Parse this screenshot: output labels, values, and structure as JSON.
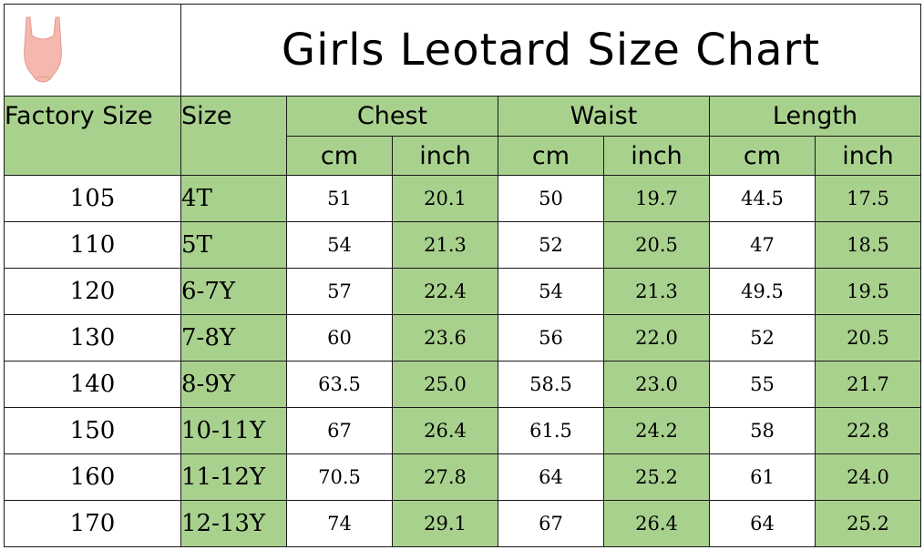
{
  "title": "Girls Leotard Size Chart",
  "logo": "pink-leotard-icon",
  "colors": {
    "header_green": "#a9d18e",
    "border": "#1a1a1a",
    "leotard_pink": "#f4b8ae"
  },
  "headers": {
    "factory_size": "Factory Size",
    "size": "Size",
    "chest": "Chest",
    "waist": "Waist",
    "length": "Length",
    "cm": "cm",
    "inch": "inch"
  },
  "rows": [
    {
      "factory": "105",
      "size": "4T",
      "chest_cm": "51",
      "chest_in": "20.1",
      "waist_cm": "50",
      "waist_in": "19.7",
      "length_cm": "44.5",
      "length_in": "17.5"
    },
    {
      "factory": "110",
      "size": "5T",
      "chest_cm": "54",
      "chest_in": "21.3",
      "waist_cm": "52",
      "waist_in": "20.5",
      "length_cm": "47",
      "length_in": "18.5"
    },
    {
      "factory": "120",
      "size": "6-7Y",
      "chest_cm": "57",
      "chest_in": "22.4",
      "waist_cm": "54",
      "waist_in": "21.3",
      "length_cm": "49.5",
      "length_in": "19.5"
    },
    {
      "factory": "130",
      "size": "7-8Y",
      "chest_cm": "60",
      "chest_in": "23.6",
      "waist_cm": "56",
      "waist_in": "22.0",
      "length_cm": "52",
      "length_in": "20.5"
    },
    {
      "factory": "140",
      "size": "8-9Y",
      "chest_cm": "63.5",
      "chest_in": "25.0",
      "waist_cm": "58.5",
      "waist_in": "23.0",
      "length_cm": "55",
      "length_in": "21.7"
    },
    {
      "factory": "150",
      "size": "10-11Y",
      "chest_cm": "67",
      "chest_in": "26.4",
      "waist_cm": "61.5",
      "waist_in": "24.2",
      "length_cm": "58",
      "length_in": "22.8"
    },
    {
      "factory": "160",
      "size": "11-12Y",
      "chest_cm": "70.5",
      "chest_in": "27.8",
      "waist_cm": "64",
      "waist_in": "25.2",
      "length_cm": "61",
      "length_in": "24.0"
    },
    {
      "factory": "170",
      "size": "12-13Y",
      "chest_cm": "74",
      "chest_in": "29.1",
      "waist_cm": "67",
      "waist_in": "26.4",
      "length_cm": "64",
      "length_in": "25.2"
    }
  ]
}
